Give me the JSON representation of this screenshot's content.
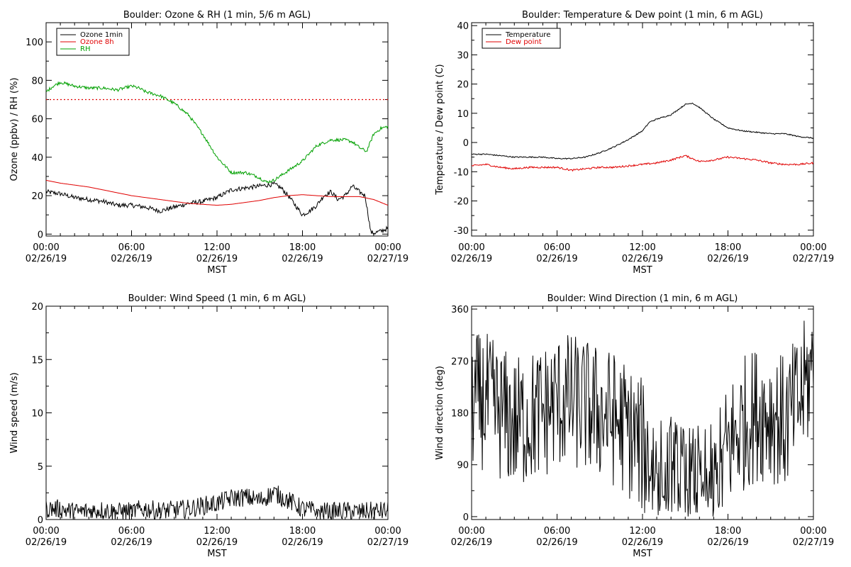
{
  "colors": {
    "background": "#ffffff",
    "axis": "#000000",
    "black": "#000000",
    "red": "#e00000",
    "green": "#00a000"
  },
  "chart_data": [
    {
      "id": "ozone",
      "type": "line",
      "title": "Boulder: Ozone & RH (1 min, 5/6 m AGL)",
      "xlabel": "MST",
      "ylabel": "Ozone (ppbv) / RH (%)",
      "xlim": [
        0,
        24
      ],
      "ylim": [
        -1,
        110
      ],
      "x_ticks": [
        {
          "value": 0,
          "time": "00:00",
          "date": "02/26/19"
        },
        {
          "value": 6,
          "time": "06:00",
          "date": "02/26/19"
        },
        {
          "value": 12,
          "time": "12:00",
          "date": "02/26/19"
        },
        {
          "value": 18,
          "time": "18:00",
          "date": "02/26/19"
        },
        {
          "value": 24,
          "time": "00:00",
          "date": "02/27/19"
        }
      ],
      "y_ticks": [
        0,
        20,
        40,
        60,
        80,
        100
      ],
      "legend": {
        "position": "top-left"
      },
      "reference_lines": [
        {
          "y": 70,
          "color": "#e00000",
          "style": "dotted"
        }
      ],
      "series": [
        {
          "name": "Ozone 1min",
          "color": "#000000",
          "noise": 1.2,
          "x": [
            0,
            1,
            2,
            3,
            4,
            5,
            6,
            7,
            8,
            9,
            10,
            11,
            12,
            13,
            14,
            15,
            16,
            16.5,
            17,
            17.5,
            18,
            18.5,
            19,
            19.5,
            20,
            20.5,
            21,
            21.5,
            22,
            22.4,
            22.8,
            23,
            23.5,
            24
          ],
          "y": [
            22,
            21,
            19,
            18,
            17,
            15,
            15,
            14,
            12,
            14,
            16,
            17,
            19,
            23,
            24,
            25,
            26,
            24,
            20,
            15,
            10,
            12,
            15,
            20,
            22,
            18,
            20,
            25,
            22,
            20,
            1,
            0.5,
            1.5,
            3
          ]
        },
        {
          "name": "Ozone 8h",
          "color": "#e00000",
          "noise": 0,
          "x": [
            0,
            1,
            2,
            3,
            4,
            5,
            6,
            7,
            8,
            9,
            10,
            11,
            12,
            13,
            14,
            15,
            16,
            17,
            18,
            19,
            20,
            21,
            22,
            23,
            24
          ],
          "y": [
            28,
            26.5,
            25.5,
            24.5,
            23,
            21.5,
            20,
            19,
            18,
            17,
            16,
            15.5,
            15,
            15.5,
            16.5,
            17.5,
            19,
            20,
            20.5,
            20,
            19.5,
            19.5,
            19.5,
            18,
            15
          ]
        },
        {
          "name": "RH",
          "color": "#00a000",
          "noise": 0.8,
          "x": [
            0,
            0.5,
            1,
            1.5,
            2,
            3,
            4,
            5,
            5.5,
            6,
            6.5,
            7,
            8,
            9,
            10,
            11,
            12,
            13,
            14,
            14.8,
            15.5,
            16,
            17,
            18,
            19,
            20,
            21,
            21.5,
            22,
            22.5,
            23,
            23.5,
            24
          ],
          "y": [
            74,
            77,
            79,
            78,
            77,
            76,
            76,
            75,
            76,
            77,
            76,
            74,
            72,
            68,
            62,
            52,
            40,
            32,
            32,
            30,
            27,
            28,
            33,
            38,
            46,
            49,
            49,
            48,
            45,
            43,
            52,
            55,
            56
          ]
        }
      ]
    },
    {
      "id": "temperature",
      "type": "line",
      "title": "Boulder: Temperature & Dew point (1 min, 6 m AGL)",
      "xlabel": "MST",
      "ylabel": "Temperature / Dew point (C)",
      "xlim": [
        0,
        24
      ],
      "ylim": [
        -32,
        41
      ],
      "x_ticks": [
        {
          "value": 0,
          "time": "00:00",
          "date": "02/26/19"
        },
        {
          "value": 6,
          "time": "06:00",
          "date": "02/26/19"
        },
        {
          "value": 12,
          "time": "12:00",
          "date": "02/26/19"
        },
        {
          "value": 18,
          "time": "18:00",
          "date": "02/26/19"
        },
        {
          "value": 24,
          "time": "00:00",
          "date": "02/27/19"
        }
      ],
      "y_ticks": [
        -30,
        -20,
        -10,
        0,
        10,
        20,
        30,
        40
      ],
      "legend": {
        "position": "top-left"
      },
      "series": [
        {
          "name": "Temperature",
          "color": "#000000",
          "noise": 0.2,
          "x": [
            0,
            1,
            2,
            3,
            4,
            5,
            6,
            7,
            8,
            9,
            10,
            11,
            12,
            12.5,
            13,
            14,
            15,
            15.5,
            16,
            17,
            18,
            19,
            20,
            21,
            22,
            23,
            24
          ],
          "y": [
            -4,
            -4,
            -4.5,
            -5,
            -5,
            -5,
            -5.5,
            -5.5,
            -5,
            -3.5,
            -1.5,
            1,
            4,
            7,
            8,
            9.5,
            13,
            13.5,
            12,
            8,
            5,
            4,
            3.5,
            3,
            3,
            2,
            1.5
          ]
        },
        {
          "name": "Dew point",
          "color": "#e00000",
          "noise": 0.3,
          "x": [
            0,
            1,
            2,
            3,
            4,
            5,
            6,
            7,
            8,
            9,
            10,
            11,
            12,
            13,
            14,
            15,
            16,
            17,
            18,
            19,
            20,
            21,
            22,
            23,
            24
          ],
          "y": [
            -8,
            -7.5,
            -8.5,
            -9,
            -8.5,
            -8.5,
            -8.5,
            -9.5,
            -9,
            -8.5,
            -8.5,
            -8,
            -7.5,
            -7,
            -6,
            -4.5,
            -6.5,
            -6,
            -5,
            -5.5,
            -6,
            -7,
            -7.5,
            -7.5,
            -7
          ]
        }
      ]
    },
    {
      "id": "wind-speed",
      "type": "line",
      "title": "Boulder: Wind Speed (1 min, 6 m AGL)",
      "xlabel": "MST",
      "ylabel": "Wind speed (m/s)",
      "xlim": [
        0,
        24
      ],
      "ylim": [
        0,
        20
      ],
      "x_ticks": [
        {
          "value": 0,
          "time": "00:00",
          "date": "02/26/19"
        },
        {
          "value": 6,
          "time": "06:00",
          "date": "02/26/19"
        },
        {
          "value": 12,
          "time": "12:00",
          "date": "02/26/19"
        },
        {
          "value": 18,
          "time": "18:00",
          "date": "02/26/19"
        },
        {
          "value": 24,
          "time": "00:00",
          "date": "02/27/19"
        }
      ],
      "y_ticks": [
        0,
        5,
        10,
        15,
        20
      ],
      "series": [
        {
          "name": "",
          "color": "#000000",
          "noise": 0.9,
          "floor": 0,
          "x": [
            0,
            1,
            2,
            3,
            4,
            5,
            6,
            7,
            8,
            9,
            10,
            11,
            12,
            13,
            14,
            15,
            16,
            17,
            18,
            19,
            20,
            21,
            22,
            23,
            24
          ],
          "y": [
            1,
            1,
            0.7,
            0.8,
            0.9,
            0.7,
            0.8,
            1,
            0.8,
            0.9,
            1,
            1.3,
            1.5,
            2,
            2.1,
            1.8,
            2.5,
            1.8,
            1,
            0.8,
            0.7,
            0.8,
            0.7,
            0.8,
            0.8
          ]
        }
      ]
    },
    {
      "id": "wind-direction",
      "type": "line",
      "title": "Boulder: Wind Direction (1 min, 6 m AGL)",
      "xlabel": "MST",
      "ylabel": "Wind direction (deg)",
      "xlim": [
        0,
        24
      ],
      "ylim": [
        -5,
        365
      ],
      "x_ticks": [
        {
          "value": 0,
          "time": "00:00",
          "date": "02/26/19"
        },
        {
          "value": 6,
          "time": "06:00",
          "date": "02/26/19"
        },
        {
          "value": 12,
          "time": "12:00",
          "date": "02/26/19"
        },
        {
          "value": 18,
          "time": "18:00",
          "date": "02/26/19"
        },
        {
          "value": 24,
          "time": "00:00",
          "date": "02/27/19"
        }
      ],
      "y_ticks": [
        0,
        90,
        180,
        270,
        360
      ],
      "series": [
        {
          "name": "",
          "color": "#000000",
          "noise": 120,
          "floor": 0,
          "ceil": 360,
          "x": [
            0,
            1,
            2,
            3,
            4,
            5,
            6,
            7,
            8,
            9,
            10,
            11,
            12,
            13,
            14,
            15,
            16,
            17,
            18,
            19,
            20,
            21,
            22,
            23,
            24
          ],
          "y": [
            200,
            200,
            180,
            160,
            170,
            180,
            200,
            200,
            190,
            180,
            170,
            150,
            120,
            80,
            60,
            40,
            40,
            40,
            120,
            160,
            180,
            180,
            160,
            200,
            260
          ]
        }
      ]
    }
  ]
}
